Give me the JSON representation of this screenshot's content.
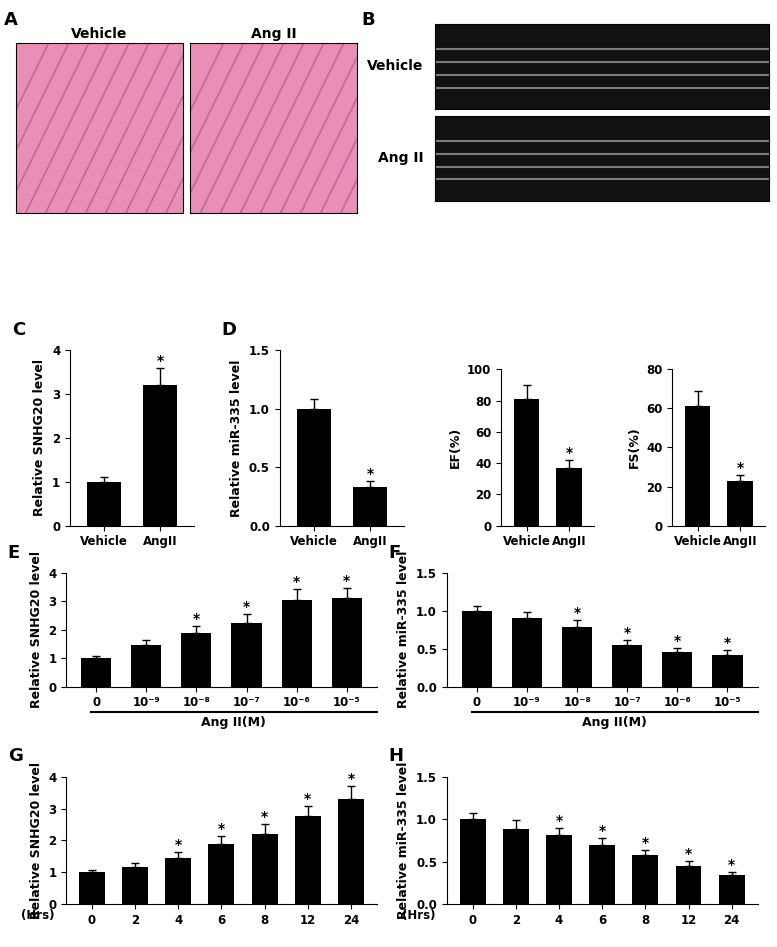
{
  "panels": [
    {
      "label": "A",
      "type": "image",
      "captions": [
        "Vehicle",
        "Ang II"
      ]
    },
    {
      "label": "B",
      "type": "image",
      "captions": [
        "Vehicle",
        "Ang II"
      ]
    }
  ],
  "chart_data": [
    {
      "panel": "C",
      "type": "bar",
      "categories": [
        "Vehicle",
        "AngII"
      ],
      "values": [
        1.0,
        3.2
      ],
      "errors": [
        0.1,
        0.4
      ],
      "significance": [
        null,
        "*"
      ],
      "ylabel": "Relative SNHG20 level",
      "ylim": [
        0,
        4
      ],
      "yticks": [
        0,
        1,
        2,
        3,
        4
      ],
      "color": "#000000"
    },
    {
      "panel": "D",
      "type": "bar",
      "categories": [
        "Vehicle",
        "AngII"
      ],
      "values": [
        1.0,
        0.33
      ],
      "errors": [
        0.08,
        0.05
      ],
      "significance": [
        null,
        "*"
      ],
      "ylabel": "Relative miR-335 level",
      "ylim": [
        0,
        1.5
      ],
      "yticks": [
        {
          "value": 0,
          "label": "0.0"
        },
        {
          "value": 0.5,
          "label": "0.5"
        },
        {
          "value": 1.0,
          "label": "1.0"
        },
        {
          "value": 1.5,
          "label": "1.5"
        }
      ],
      "color": "#000000"
    },
    {
      "type": "bar",
      "categories": [
        "Vehicle",
        "AngII"
      ],
      "values": [
        81,
        37
      ],
      "errors": [
        9,
        5
      ],
      "significance": [
        null,
        "*"
      ],
      "ylabel": "EF(%)",
      "ylim": [
        0,
        100
      ],
      "yticks": [
        0,
        20,
        40,
        60,
        80,
        100
      ],
      "color": "#000000"
    },
    {
      "type": "bar",
      "categories": [
        "Vehicle",
        "AngII"
      ],
      "values": [
        61,
        23
      ],
      "errors": [
        8,
        3
      ],
      "significance": [
        null,
        "*"
      ],
      "ylabel": "FS(%)",
      "ylim": [
        0,
        80
      ],
      "yticks": [
        0,
        20,
        40,
        60,
        80
      ],
      "color": "#000000"
    },
    {
      "panel": "E",
      "type": "bar",
      "categories": [
        "0",
        "10⁻⁹",
        "10⁻⁸",
        "10⁻⁷",
        "10⁻⁶",
        "10⁻⁵"
      ],
      "values": [
        1.0,
        1.45,
        1.88,
        2.25,
        3.05,
        3.12
      ],
      "errors": [
        0.08,
        0.2,
        0.25,
        0.3,
        0.4,
        0.35
      ],
      "significance": [
        null,
        null,
        "*",
        "*",
        "*",
        "*"
      ],
      "ylabel": "Relative SNHG20 level",
      "xlabel": "Ang II(M)",
      "ylim": [
        0,
        4
      ],
      "yticks": [
        0,
        1,
        2,
        3,
        4
      ],
      "color": "#000000"
    },
    {
      "panel": "F",
      "type": "bar",
      "categories": [
        "0",
        "10⁻⁹",
        "10⁻⁸",
        "10⁻⁷",
        "10⁻⁶",
        "10⁻⁵"
      ],
      "values": [
        1.0,
        0.9,
        0.79,
        0.55,
        0.46,
        0.42
      ],
      "errors": [
        0.07,
        0.08,
        0.09,
        0.07,
        0.05,
        0.06
      ],
      "significance": [
        null,
        null,
        "*",
        "*",
        "*",
        "*"
      ],
      "ylabel": "Relative miR-335 level",
      "xlabel": "Ang II(M)",
      "ylim": [
        0,
        1.5
      ],
      "yticks": [
        {
          "value": 0,
          "label": "0.0"
        },
        {
          "value": 0.5,
          "label": "0.5"
        },
        {
          "value": 1.0,
          "label": "1.0"
        },
        {
          "value": 1.5,
          "label": "1.5"
        }
      ],
      "color": "#000000"
    },
    {
      "panel": "G",
      "type": "bar",
      "categories": [
        "0",
        "2",
        "4",
        "6",
        "8",
        "12",
        "24"
      ],
      "values": [
        1.0,
        1.18,
        1.45,
        1.9,
        2.2,
        2.78,
        3.3
      ],
      "errors": [
        0.08,
        0.1,
        0.2,
        0.25,
        0.3,
        0.3,
        0.4
      ],
      "significance": [
        null,
        null,
        "*",
        "*",
        "*",
        "*",
        "*"
      ],
      "ylabel": "Relative SNHG20 level",
      "xlabel": "(Hrs)",
      "ylim": [
        0,
        4
      ],
      "yticks": [
        0,
        1,
        2,
        3,
        4
      ],
      "color": "#000000"
    },
    {
      "panel": "H",
      "type": "bar",
      "categories": [
        "0",
        "2",
        "4",
        "6",
        "8",
        "12",
        "24"
      ],
      "values": [
        1.0,
        0.89,
        0.81,
        0.7,
        0.58,
        0.45,
        0.34
      ],
      "errors": [
        0.07,
        0.1,
        0.09,
        0.08,
        0.06,
        0.06,
        0.04
      ],
      "significance": [
        null,
        null,
        "*",
        "*",
        "*",
        "*",
        "*"
      ],
      "ylabel": "Relative miR-335 level",
      "xlabel": "(Hrs)",
      "ylim": [
        0,
        1.5
      ],
      "yticks": [
        {
          "value": 0,
          "label": "0.0"
        },
        {
          "value": 0.5,
          "label": "0.5"
        },
        {
          "value": 1.0,
          "label": "1.0"
        },
        {
          "value": 1.5,
          "label": "1.5"
        }
      ],
      "color": "#000000"
    }
  ]
}
